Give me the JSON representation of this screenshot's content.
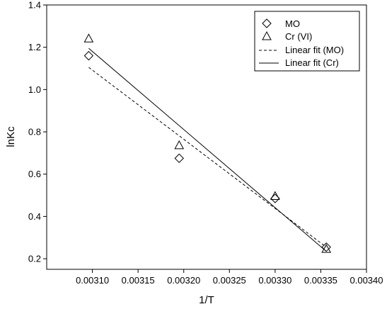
{
  "chart_data": {
    "type": "scatter",
    "xlabel": "1/T",
    "ylabel": "lnKc",
    "xlim": [
      0.00305,
      0.0034
    ],
    "ylim": [
      0.15,
      1.4
    ],
    "xticks": [
      0.0031,
      0.00315,
      0.0032,
      0.00325,
      0.0033,
      0.00335,
      0.0034
    ],
    "xtick_labels": [
      "0.00310",
      "0.00315",
      "0.00320",
      "0.00325",
      "0.00330",
      "0.00335",
      "0.00340"
    ],
    "yticks": [
      0.2,
      0.4,
      0.6,
      0.8,
      1.0,
      1.2,
      1.4
    ],
    "ytick_labels": [
      "0.2",
      "0.4",
      "0.6",
      "0.8",
      "1.0",
      "1.2",
      "1.4"
    ],
    "grid": false,
    "legend_position": "top-right",
    "series": [
      {
        "name": "MO",
        "marker": "diamond",
        "x": [
          0.003096,
          0.003195,
          0.0033,
          0.003356
        ],
        "y": [
          1.16,
          0.675,
          0.485,
          0.255
        ]
      },
      {
        "name": "Cr (VI)",
        "marker": "triangle",
        "x": [
          0.003096,
          0.003195,
          0.0033,
          0.003356
        ],
        "y": [
          1.24,
          0.735,
          0.495,
          0.245
        ]
      }
    ],
    "fits": [
      {
        "name": "Linear fit (MO)",
        "style": "dashed",
        "x": [
          0.003096,
          0.003356
        ],
        "y": [
          1.105,
          0.255
        ]
      },
      {
        "name": "Linear fit (Cr)",
        "style": "solid",
        "x": [
          0.003096,
          0.003356
        ],
        "y": [
          1.195,
          0.235
        ]
      }
    ]
  }
}
